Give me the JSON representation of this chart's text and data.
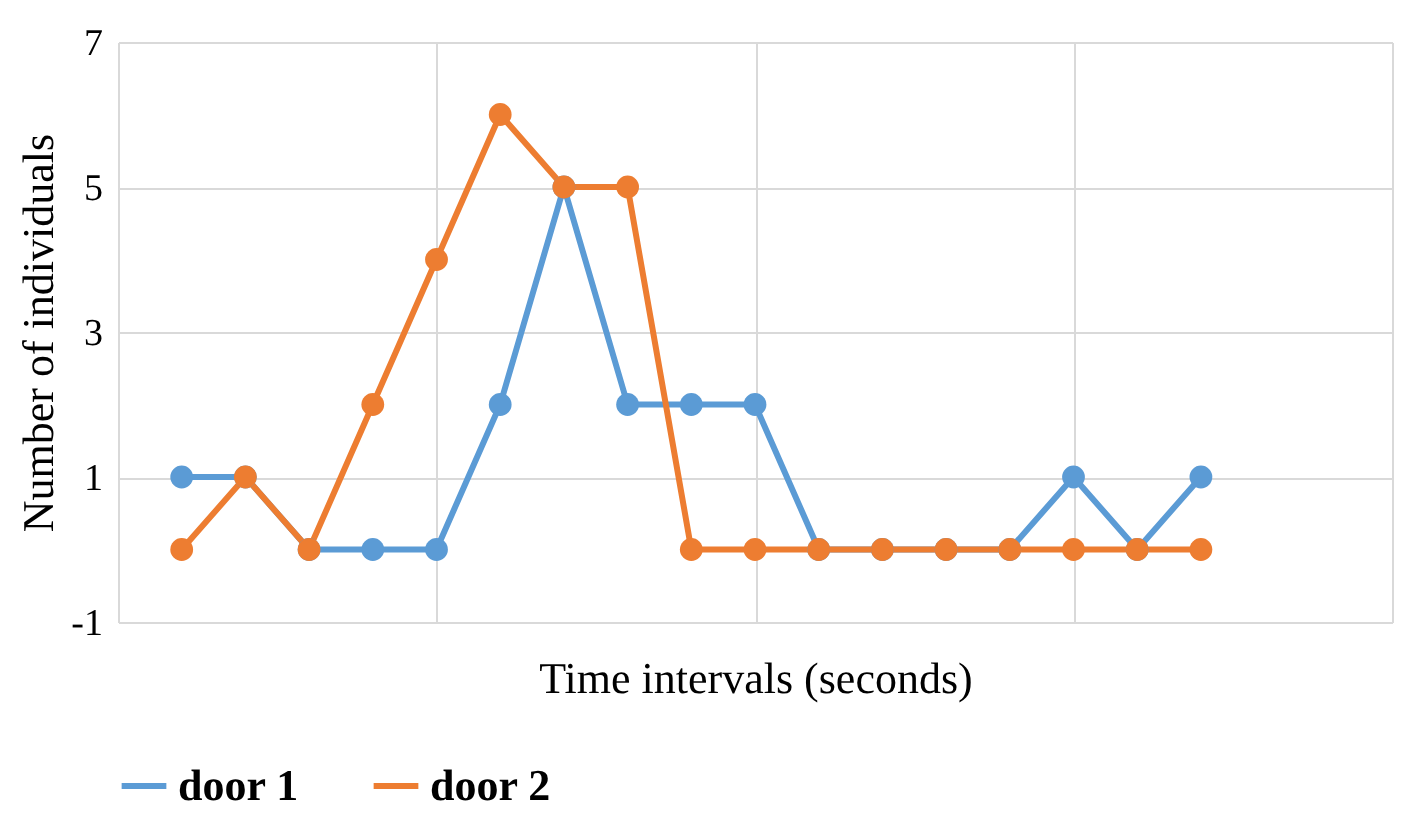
{
  "chart_data": {
    "type": "line",
    "xlabel": "Time intervals (seconds)",
    "ylabel": "Number of individuals",
    "categories": [
      null,
      null,
      null,
      null,
      null,
      null,
      null,
      null,
      null,
      null,
      null,
      null,
      null,
      null,
      null,
      null,
      null
    ],
    "series": [
      {
        "name": "door 1",
        "color": "#5b9bd5",
        "values": [
          1,
          1,
          0,
          0,
          0,
          2,
          5,
          2,
          2,
          2,
          0,
          0,
          0,
          0,
          1,
          0,
          1
        ]
      },
      {
        "name": "door 2",
        "color": "#ed7d31",
        "values": [
          0,
          1,
          0,
          2,
          4,
          6,
          5,
          5,
          0,
          0,
          0,
          0,
          0,
          0,
          0,
          0,
          0
        ]
      }
    ],
    "ylim": [
      -1,
      7
    ],
    "yticks": [
      -1,
      1,
      3,
      5,
      7
    ],
    "grid": true,
    "legend": "bottom",
    "marker": "circle",
    "line_style": "solid"
  }
}
